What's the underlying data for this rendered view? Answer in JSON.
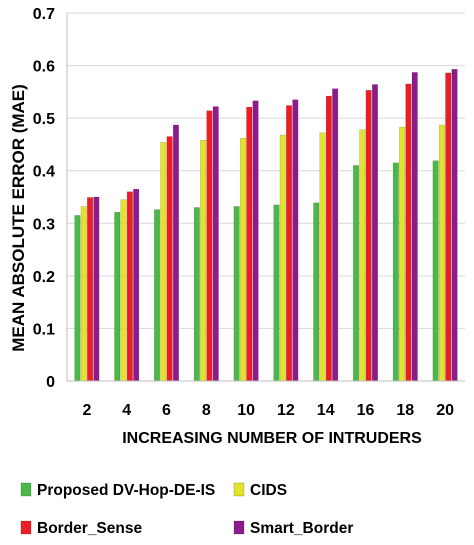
{
  "chart_data": {
    "type": "bar",
    "xlabel": "INCREASING NUMBER OF INTRUDERS",
    "ylabel": "MEAN ABSOLUTE ERROR (MAE)",
    "ylim": [
      0,
      0.7
    ],
    "yticks": [
      "0",
      "0.1",
      "0.2",
      "0.3",
      "0.4",
      "0.5",
      "0.6",
      "0.7"
    ],
    "categories": [
      "2",
      "4",
      "6",
      "8",
      "10",
      "12",
      "14",
      "16",
      "18",
      "20"
    ],
    "grid": "horizontal",
    "legend_placement": "bottom",
    "series": [
      {
        "name": "Proposed DV-Hop-DE-IS",
        "color": "#4cb848",
        "values": [
          0.315,
          0.321,
          0.326,
          0.33,
          0.332,
          0.335,
          0.339,
          0.41,
          0.415,
          0.419
        ]
      },
      {
        "name": "CIDS",
        "color": "#e3e32c",
        "values": [
          0.332,
          0.345,
          0.454,
          0.458,
          0.462,
          0.468,
          0.472,
          0.478,
          0.483,
          0.487
        ]
      },
      {
        "name": "Border_Sense",
        "color": "#ee1c24",
        "values": [
          0.349,
          0.36,
          0.465,
          0.514,
          0.521,
          0.524,
          0.542,
          0.553,
          0.565,
          0.586
        ]
      },
      {
        "name": "Smart_Border",
        "color": "#8e1a8c",
        "values": [
          0.35,
          0.365,
          0.487,
          0.522,
          0.533,
          0.535,
          0.556,
          0.564,
          0.587,
          0.593
        ]
      }
    ]
  }
}
